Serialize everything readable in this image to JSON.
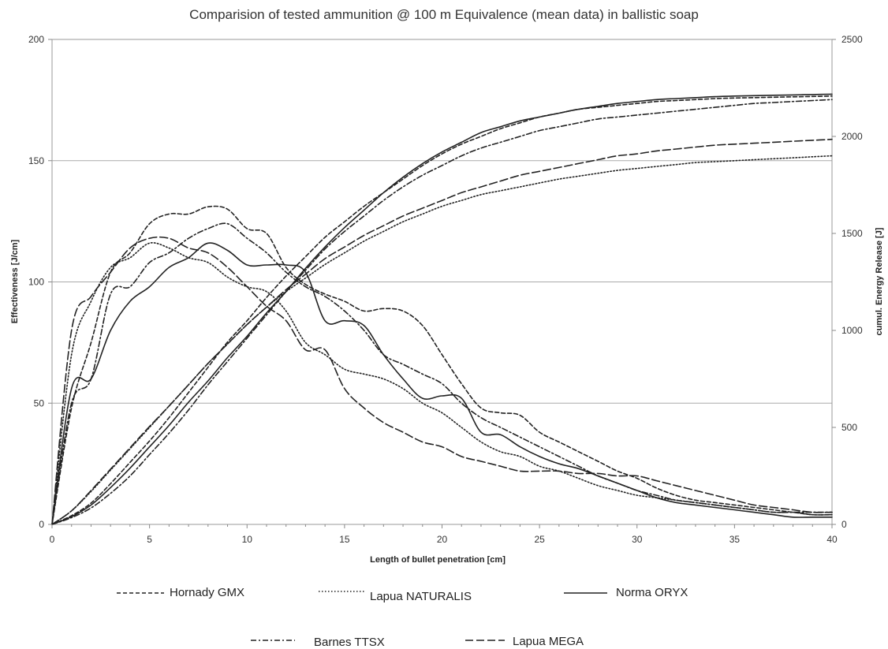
{
  "chart_data": {
    "type": "line",
    "title": "Comparision of tested ammunition @ 100 m Equivalence (mean data) in ballistic soap",
    "xlabel": "Length of bullet penetration [cm]",
    "ylabel": "Effectiveness  [J/cm]",
    "y2label": "cumul. Energy Release [J]",
    "xlim": [
      0,
      40
    ],
    "ylim": [
      0,
      200
    ],
    "y2lim": [
      0,
      2500
    ],
    "x_ticks": [
      "0",
      "5",
      "10",
      "15",
      "20",
      "25",
      "30",
      "35",
      "40"
    ],
    "y_ticks": [
      "0",
      "50",
      "100",
      "150",
      "200"
    ],
    "y2_ticks": [
      "0",
      "500",
      "1000",
      "1500",
      "2000",
      "2500"
    ],
    "grid": "horizontal",
    "legend_position": "bottom",
    "x": [
      0,
      1,
      2,
      3,
      4,
      5,
      6,
      7,
      8,
      9,
      10,
      11,
      12,
      13,
      14,
      15,
      16,
      17,
      18,
      19,
      20,
      21,
      22,
      23,
      24,
      25,
      26,
      27,
      28,
      29,
      30,
      31,
      32,
      33,
      34,
      35,
      36,
      37,
      38,
      39,
      40
    ],
    "series": [
      {
        "name": "Hornady GMX",
        "dash": "5,3",
        "effectiveness": [
          0,
          48,
          75,
          104,
          112,
          124,
          128,
          128,
          131,
          130,
          122,
          120,
          106,
          99,
          95,
          92,
          88,
          89,
          88,
          82,
          70,
          58,
          48,
          46,
          45,
          38,
          34,
          30,
          26,
          22,
          19,
          15,
          12,
          10,
          9,
          8,
          7,
          6,
          5,
          4,
          4
        ],
        "cumulative": [
          0,
          45,
          110,
          210,
          320,
          430,
          550,
          680,
          810,
          940,
          1050,
          1170,
          1280,
          1380,
          1480,
          1560,
          1640,
          1710,
          1780,
          1850,
          1910,
          1960,
          2000,
          2040,
          2070,
          2100,
          2120,
          2140,
          2150,
          2160,
          2170,
          2180,
          2185,
          2190,
          2195,
          2198,
          2200,
          2202,
          2204,
          2206,
          2208
        ]
      },
      {
        "name": "Lapua NATURALIS",
        "dash": "1.5,2.5",
        "effectiveness": [
          0,
          70,
          92,
          106,
          110,
          116,
          114,
          110,
          108,
          102,
          98,
          96,
          88,
          75,
          70,
          64,
          62,
          60,
          56,
          50,
          46,
          40,
          34,
          30,
          28,
          24,
          22,
          19,
          16,
          14,
          12,
          11,
          10,
          9,
          8,
          7,
          6,
          5,
          5,
          4,
          4
        ],
        "cumulative": [
          0,
          70,
          170,
          280,
          390,
          500,
          610,
          720,
          830,
          930,
          1030,
          1120,
          1200,
          1270,
          1340,
          1400,
          1460,
          1510,
          1560,
          1600,
          1640,
          1670,
          1700,
          1720,
          1740,
          1760,
          1780,
          1795,
          1810,
          1825,
          1835,
          1845,
          1855,
          1865,
          1870,
          1875,
          1880,
          1885,
          1890,
          1895,
          1900
        ]
      },
      {
        "name": "Norma ORYX",
        "dash": "",
        "effectiveness": [
          0,
          56,
          60,
          80,
          92,
          98,
          106,
          110,
          116,
          113,
          107,
          107,
          107,
          104,
          84,
          84,
          82,
          70,
          60,
          52,
          53,
          52,
          38,
          37,
          32,
          28,
          25,
          23,
          20,
          17,
          14,
          11,
          9,
          8,
          7,
          6,
          5,
          4,
          3,
          3,
          3
        ],
        "cumulative": [
          0,
          40,
          100,
          190,
          290,
          400,
          510,
          630,
          740,
          860,
          970,
          1090,
          1200,
          1320,
          1430,
          1530,
          1620,
          1710,
          1790,
          1860,
          1920,
          1970,
          2020,
          2050,
          2080,
          2100,
          2120,
          2140,
          2155,
          2170,
          2180,
          2190,
          2195,
          2200,
          2205,
          2208,
          2210,
          2212,
          2214,
          2216,
          2218
        ]
      },
      {
        "name": "Barnes TTSX",
        "dash": "7,3,2,3",
        "effectiveness": [
          0,
          50,
          60,
          95,
          98,
          108,
          112,
          118,
          122,
          124,
          118,
          112,
          104,
          98,
          94,
          88,
          80,
          70,
          66,
          62,
          58,
          50,
          44,
          40,
          36,
          32,
          28,
          24,
          20,
          17,
          14,
          12,
          10,
          9,
          8,
          7,
          6,
          5,
          5,
          5,
          5
        ],
        "cumulative": [
          0,
          35,
          85,
          160,
          250,
          360,
          470,
          590,
          720,
          840,
          960,
          1080,
          1200,
          1310,
          1420,
          1510,
          1590,
          1670,
          1740,
          1800,
          1850,
          1900,
          1940,
          1970,
          2000,
          2030,
          2050,
          2070,
          2090,
          2100,
          2110,
          2120,
          2130,
          2140,
          2150,
          2160,
          2170,
          2175,
          2180,
          2185,
          2190
        ]
      },
      {
        "name": "Lapua MEGA",
        "dash": "10,4",
        "effectiveness": [
          0,
          80,
          94,
          104,
          114,
          118,
          118,
          114,
          112,
          106,
          98,
          90,
          84,
          72,
          72,
          56,
          48,
          42,
          38,
          34,
          32,
          28,
          26,
          24,
          22,
          22,
          22,
          21,
          21,
          20,
          20,
          18,
          16,
          14,
          12,
          10,
          8,
          7,
          6,
          5,
          5
        ],
        "cumulative": [
          0,
          70,
          175,
          285,
          395,
          505,
          610,
          720,
          830,
          930,
          1030,
          1120,
          1210,
          1290,
          1370,
          1430,
          1490,
          1540,
          1590,
          1630,
          1670,
          1710,
          1740,
          1770,
          1800,
          1820,
          1840,
          1860,
          1880,
          1900,
          1910,
          1925,
          1935,
          1945,
          1955,
          1960,
          1965,
          1970,
          1975,
          1980,
          1985
        ]
      }
    ]
  }
}
